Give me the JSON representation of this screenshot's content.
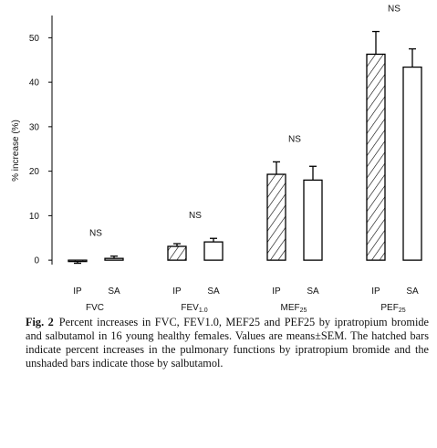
{
  "chart_data": {
    "type": "bar",
    "y_label": "% increase (%)",
    "categories": [
      "FVC",
      "FEV1.0",
      "MEF25",
      "PEF25"
    ],
    "series": [
      {
        "name": "IP",
        "color": "#000000",
        "pattern": "hatched",
        "values": [
          -0.3,
          3.1,
          19.3,
          46.3
        ],
        "errors": [
          0.4,
          0.6,
          2.8,
          5.1
        ]
      },
      {
        "name": "SA",
        "color": "#000000",
        "pattern": "none",
        "values": [
          0.4,
          4.1,
          18.0,
          43.4
        ],
        "errors": [
          0.5,
          0.8,
          3.1,
          4.1
        ]
      }
    ],
    "annotations": [
      "NS",
      "NS",
      "NS",
      "NS"
    ],
    "ylim": [
      -1,
      55
    ],
    "yticks": [
      0,
      10,
      20,
      30,
      40,
      50
    ],
    "grid": false
  },
  "caption": {
    "label": "Fig. 2",
    "text": "Percent increases in FVC, FEV1.0, MEF25 and PEF25 by ipratropium bromide and salbutamol in 16 young healthy females. Values are means±SEM. The hatched bars indicate percent increases in the pulmonary functions by ipratropium bromide and the unshaded bars indicate those by salbutamol."
  }
}
